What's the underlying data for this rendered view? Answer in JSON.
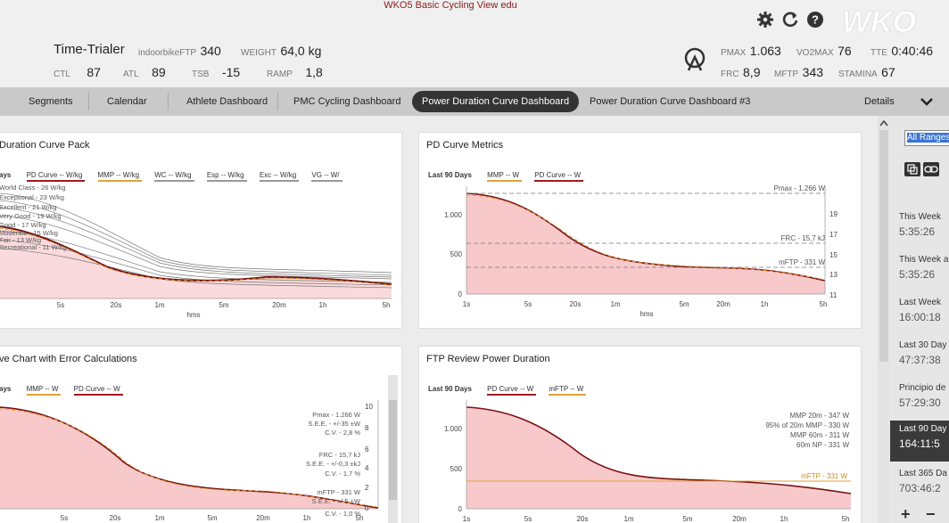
{
  "window": {
    "title": "WKO5 Basic Cycling View edu"
  },
  "athlete": {
    "name": "Time-Trialer",
    "ftp_label": "indoorbikeFTP",
    "ftp_value": "340",
    "weight_label": "WEIGHT",
    "weight_value": "64,0 kg",
    "ctl_label": "CTL",
    "ctl_value": "87",
    "atl_label": "ATL",
    "atl_value": "89",
    "tsb_label": "TSB",
    "tsb_value": "-15",
    "ramp_label": "RAMP",
    "ramp_value": "1,8"
  },
  "metrics": {
    "pmax_label": "PMAX",
    "pmax_value": "1.063",
    "vo2max_label": "VO2MAX",
    "vo2max_value": "76",
    "tte_label": "TTE",
    "tte_value": "0:40:46",
    "frc_label": "FRC",
    "frc_value": "8,9",
    "mftp_label": "MFTP",
    "mftp_value": "343",
    "stamina_label": "STAMINA",
    "stamina_value": "67"
  },
  "header_icons": [
    "gear-icon",
    "refresh-icon",
    "help-icon"
  ],
  "logo": "WKO",
  "nav": {
    "tabs": [
      {
        "label": "Segments"
      },
      {
        "label": "Calendar"
      },
      {
        "label": "Athlete Dashboard"
      },
      {
        "label": "PMC Cycling Dashboard"
      },
      {
        "label": "Power Duration Curve Dashboard"
      },
      {
        "label": "Power Duration Curve Dashboard #3"
      }
    ],
    "active_tab": 4,
    "details_label": "Details"
  },
  "panels": {
    "pack": {
      "title": "Duration Curve Pack",
      "legend": [
        "ays",
        "PD Curve  -- W/kg",
        "MMP  -- W/kg",
        "WC  -- W/kg",
        "Esp  -- W/kg",
        "Exc  -- W/kg",
        "VG  -- W/"
      ],
      "annotations": [
        "World Class - 26 W/kg",
        "Exceptional - 23 W/kg",
        "Excellent - 21 W/kg",
        "Very Good - 19 W/kg",
        "Good - 17 W/kg",
        "Moderate - 15 W/kg",
        "Fair - 13 W/kg",
        "Recreational - 11 W/kg"
      ],
      "x_ticks": [
        "5s",
        "20s",
        "1m",
        "5m",
        "20m",
        "1h",
        "5h"
      ],
      "x_label": "hms"
    },
    "metrics": {
      "title": "PD Curve Metrics",
      "legend": [
        "Last 90 Days",
        "MMP  -- W",
        "PD Curve  -- W"
      ],
      "y_ticks": [
        "1.000",
        "500",
        "0"
      ],
      "y2_ticks": [
        "19",
        "17",
        "15",
        "13",
        "11"
      ],
      "ref_lines": [
        "Pmax - 1.266 W",
        "FRC - 15,7 kJ",
        "mFTP - 331 W"
      ],
      "x_ticks": [
        "1s",
        "5s",
        "20s",
        "1m",
        "5m",
        "20m",
        "1h",
        "5h"
      ],
      "x_label": "hms"
    },
    "error": {
      "title": "ve Chart with Error Calculations",
      "legend": [
        "ays",
        "MMP  -- W",
        "PD Curve  -- W"
      ],
      "y2_ticks": [
        "10",
        "8",
        "6",
        "4",
        "2",
        "0"
      ],
      "annotations": [
        "Pmax - 1.266 W",
        "S.E.E. - +/-35 ±W",
        "C.V. - 2,8 %",
        "FRC - 15,7 kJ",
        "S.E.E. - +/-0,3 ±kJ",
        "C.V. - 1,7 %",
        "mFTP - 331 W",
        "S.E.E. - +/-5 ±W",
        "C.V. - 1,0 %"
      ],
      "x_ticks": [
        "5s",
        "20s",
        "1m",
        "5m",
        "20m",
        "1h",
        "5h"
      ]
    },
    "ftp": {
      "title": "FTP Review Power Duration",
      "legend": [
        "Last 90 Days",
        "PD Curve  -- W",
        "mFTP  -- W"
      ],
      "y_ticks": [
        "1.000",
        "500",
        "0"
      ],
      "annotations": [
        "MMP 20m - 347 W",
        "95% of 20m MMP - 330 W",
        "MMP 60m - 311 W",
        "60m NP - 331 W"
      ],
      "mftp_line": "mFTP - 331 W",
      "x_ticks": [
        "1s",
        "5s",
        "20s",
        "1m",
        "5m",
        "20m",
        "1h",
        "5h"
      ]
    }
  },
  "sidebar": {
    "range_button": "All Ranges",
    "items": [
      {
        "label": "This Week",
        "value": "5:35:26"
      },
      {
        "label": "This Week a",
        "value": "5:35:26"
      },
      {
        "label": "Last Week",
        "value": "16:00:18"
      },
      {
        "label": "Last 30 Day",
        "value": "47:37:38"
      },
      {
        "label": "Principio de",
        "value": "57:29:30"
      },
      {
        "label": "Last 90 Day",
        "value": "164:11:5"
      },
      {
        "label": "Last 365 Da",
        "value": "703:46:2"
      }
    ],
    "active_item": 5
  },
  "colors": {
    "curve": "#7a1010",
    "fill": "#f7c9cb",
    "mmp": "#e3a23a",
    "accent": "#a01a22",
    "nav_active": "#343434"
  }
}
